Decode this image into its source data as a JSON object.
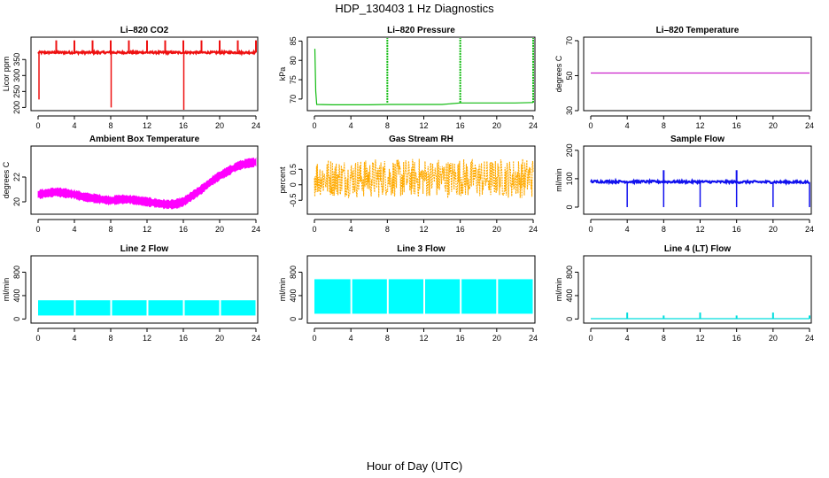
{
  "figure": {
    "title": "HDP_130403  1 Hz Diagnostics",
    "xlabel": "Hour of Day (UTC)"
  },
  "chart_data": [
    {
      "id": "co2",
      "type": "line",
      "title": "Li–820 CO2",
      "ylabel": "Licor ppm",
      "color": "#ee1111",
      "xlim": [
        0,
        24
      ],
      "ylim": [
        190,
        420
      ],
      "xticks": [
        0,
        4,
        8,
        12,
        16,
        20,
        24
      ],
      "yticks": [
        200,
        250,
        300,
        350
      ],
      "baseline": 372,
      "noise": 3,
      "spikes_up": [
        {
          "x": 2.0,
          "y": 410
        },
        {
          "x": 4.0,
          "y": 410
        },
        {
          "x": 6.0,
          "y": 410
        },
        {
          "x": 8.0,
          "y": 410
        },
        {
          "x": 10.0,
          "y": 410
        },
        {
          "x": 12.0,
          "y": 410
        },
        {
          "x": 14.0,
          "y": 410
        },
        {
          "x": 16.0,
          "y": 410
        },
        {
          "x": 18.0,
          "y": 410
        },
        {
          "x": 20.0,
          "y": 410
        },
        {
          "x": 22.0,
          "y": 410
        },
        {
          "x": 24.0,
          "y": 410
        }
      ],
      "spikes_down": [
        {
          "x": 0.1,
          "y": 225
        },
        {
          "x": 8.05,
          "y": 200
        },
        {
          "x": 16.05,
          "y": 190
        }
      ]
    },
    {
      "id": "pressure",
      "type": "line",
      "title": "Li–820 Pressure",
      "ylabel": "kPa",
      "color": "#11bb11",
      "xlim": [
        0,
        24
      ],
      "ylim": [
        67,
        86
      ],
      "xticks": [
        0,
        4,
        8,
        12,
        16,
        20,
        24
      ],
      "yticks": [
        70,
        75,
        80,
        85
      ],
      "series": [
        {
          "name": "pressure",
          "x": [
            0.05,
            0.15,
            0.25,
            2,
            4,
            6,
            8,
            10,
            12,
            14,
            16,
            18,
            20,
            22,
            24
          ],
          "y": [
            83,
            72,
            68.6,
            68.5,
            68.5,
            68.5,
            68.6,
            68.6,
            68.6,
            68.6,
            69.0,
            69.0,
            69.0,
            69.0,
            69.1
          ]
        }
      ],
      "spikes_up": [
        {
          "x": 8.0,
          "y": 86
        },
        {
          "x": 16.0,
          "y": 86
        },
        {
          "x": 24.0,
          "y": 86
        }
      ]
    },
    {
      "id": "temperature",
      "type": "line",
      "title": "Li–820 Temperature",
      "ylabel": "degrees C",
      "color": "#cc22cc",
      "xlim": [
        0,
        24
      ],
      "ylim": [
        30,
        72
      ],
      "xticks": [
        0,
        4,
        8,
        12,
        16,
        20,
        24
      ],
      "yticks": [
        30,
        50,
        70
      ],
      "series": [
        {
          "name": "temperature",
          "x": [
            0,
            24
          ],
          "y": [
            51.5,
            51.5
          ]
        }
      ]
    },
    {
      "id": "ambient",
      "type": "line",
      "title": "Ambient Box Temperature",
      "ylabel": "degrees C",
      "color": "#ff00ff",
      "xlim": [
        0,
        24
      ],
      "ylim": [
        19,
        24.5
      ],
      "xticks": [
        0,
        4,
        8,
        12,
        16,
        20,
        24
      ],
      "yticks": [
        20,
        22
      ],
      "series": [
        {
          "name": "ambient",
          "x": [
            0,
            1,
            2,
            3,
            4,
            5,
            6,
            7,
            8,
            9,
            10,
            11,
            12,
            13,
            14,
            15,
            16,
            17,
            18,
            19,
            20,
            21,
            22,
            23,
            24
          ],
          "y": [
            20.6,
            20.7,
            20.8,
            20.7,
            20.6,
            20.4,
            20.3,
            20.2,
            20.1,
            20.2,
            20.2,
            20.1,
            20.0,
            19.9,
            19.8,
            19.8,
            20.0,
            20.5,
            21.0,
            21.6,
            22.1,
            22.5,
            22.9,
            23.1,
            23.2
          ]
        }
      ],
      "band": 0.35
    },
    {
      "id": "rh",
      "type": "band",
      "title": "Gas Stream RH",
      "ylabel": "percent",
      "color": "#ffaa00",
      "xlim": [
        0,
        24
      ],
      "ylim": [
        -0.95,
        1.25
      ],
      "xticks": [
        0,
        4,
        8,
        12,
        16,
        20,
        24
      ],
      "yticks": [
        -0.5,
        0.0,
        0.5
      ],
      "center": 0.22,
      "amplitude": 0.65
    },
    {
      "id": "sample_flow",
      "type": "line",
      "title": "Sample Flow",
      "ylabel": "ml/min",
      "color": "#1111ee",
      "xlim": [
        0,
        24
      ],
      "ylim": [
        -25,
        215
      ],
      "xticks": [
        0,
        4,
        8,
        12,
        16,
        20,
        24
      ],
      "yticks": [
        0,
        100,
        200
      ],
      "series": [
        {
          "name": "sample flow",
          "x": [
            0,
            24
          ],
          "y": [
            90,
            88
          ]
        }
      ],
      "noise": 4,
      "spikes_down": [
        {
          "x": 4.0,
          "y": 0
        },
        {
          "x": 8.0,
          "y": 0
        },
        {
          "x": 12.0,
          "y": 0
        },
        {
          "x": 16.0,
          "y": 0
        },
        {
          "x": 20.0,
          "y": 0
        },
        {
          "x": 24.0,
          "y": 0
        }
      ],
      "spikes_up": [
        {
          "x": 8.0,
          "y": 130
        },
        {
          "x": 16.0,
          "y": 130
        }
      ]
    },
    {
      "id": "line2",
      "type": "band",
      "title": "Line 2 Flow",
      "ylabel": "ml/min",
      "color": "#00ffff",
      "xlim": [
        0,
        24
      ],
      "ylim": [
        -70,
        1080
      ],
      "xticks": [
        0,
        4,
        8,
        12,
        16,
        20,
        24
      ],
      "yticks": [
        0,
        400,
        800
      ],
      "low": 60,
      "high": 320,
      "gaps": [
        4,
        8,
        12,
        16,
        20
      ]
    },
    {
      "id": "line3",
      "type": "band",
      "title": "Line 3 Flow",
      "ylabel": "ml/min",
      "color": "#00ffff",
      "xlim": [
        0,
        24
      ],
      "ylim": [
        -70,
        1080
      ],
      "xticks": [
        0,
        4,
        8,
        12,
        16,
        20,
        24
      ],
      "yticks": [
        0,
        400,
        800
      ],
      "low": 90,
      "high": 680,
      "gaps": [
        4,
        8,
        12,
        16,
        20
      ]
    },
    {
      "id": "line4",
      "type": "line",
      "title": "Line 4 (LT) Flow",
      "ylabel": "ml/min",
      "color": "#00dddd",
      "xlim": [
        0,
        24
      ],
      "ylim": [
        -70,
        1080
      ],
      "xticks": [
        0,
        4,
        8,
        12,
        16,
        20,
        24
      ],
      "yticks": [
        0,
        400,
        800
      ],
      "series": [
        {
          "name": "line 4 flow",
          "x": [
            0,
            24
          ],
          "y": [
            5,
            5
          ]
        }
      ],
      "spikes_up": [
        {
          "x": 4.0,
          "y": 110
        },
        {
          "x": 8.0,
          "y": 60
        },
        {
          "x": 12.0,
          "y": 110
        },
        {
          "x": 16.0,
          "y": 60
        },
        {
          "x": 20.0,
          "y": 110
        },
        {
          "x": 24.0,
          "y": 60
        }
      ]
    }
  ]
}
